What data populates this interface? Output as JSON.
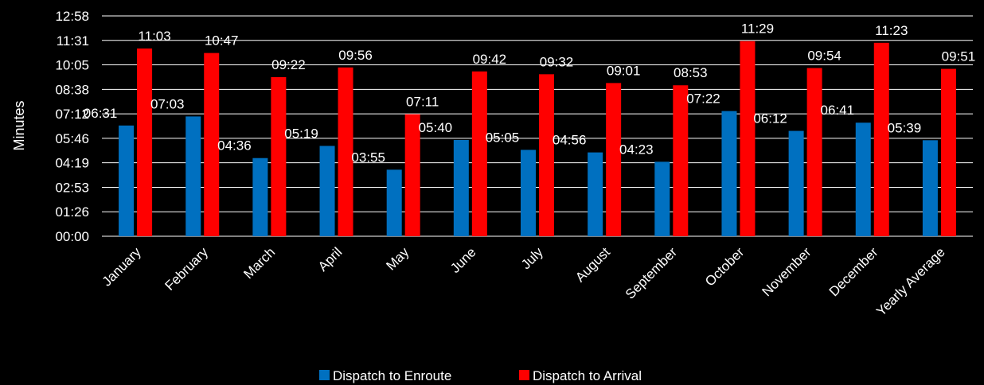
{
  "chart_data": {
    "type": "bar",
    "ylabel": "Minutes",
    "y_ticks": [
      "00:00",
      "01:26",
      "02:53",
      "04:19",
      "05:46",
      "07:12",
      "08:38",
      "10:05",
      "11:31",
      "12:58"
    ],
    "ylim_seconds": [
      0,
      778
    ],
    "categories": [
      "January",
      "February",
      "March",
      "April",
      "May",
      "June",
      "July",
      "August",
      "September",
      "October",
      "November",
      "December",
      "Yearly Average"
    ],
    "series": [
      {
        "name": "Dispatch to Enroute",
        "color": "#0070C0",
        "labels": [
          "06:31",
          "07:03",
          "04:36",
          "05:19",
          "03:55",
          "05:40",
          "05:05",
          "04:56",
          "04:23",
          "07:22",
          "06:12",
          "06:41",
          "05:39"
        ],
        "values_seconds": [
          391,
          423,
          276,
          319,
          235,
          340,
          305,
          296,
          263,
          442,
          372,
          401,
          339
        ]
      },
      {
        "name": "Dispatch to Arrival",
        "color": "#FF0000",
        "labels": [
          "11:03",
          "10:47",
          "09:22",
          "09:56",
          "07:11",
          "09:42",
          "09:32",
          "09:01",
          "08:53",
          "11:29",
          "09:54",
          "11:23",
          "09:51"
        ],
        "values_seconds": [
          663,
          647,
          562,
          596,
          431,
          582,
          572,
          541,
          533,
          689,
          594,
          683,
          591
        ]
      }
    ],
    "grid": "horizontal",
    "legend_position": "bottom"
  }
}
